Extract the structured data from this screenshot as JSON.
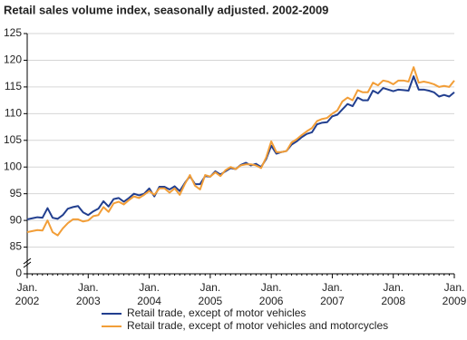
{
  "chart_data": {
    "type": "line",
    "title": "Retail sales volume index, seasonally adjusted. 2002-2009",
    "categories": [
      "Jan. 2002",
      null,
      null,
      null,
      null,
      null,
      null,
      null,
      null,
      null,
      null,
      null,
      "Jan. 2003",
      null,
      null,
      null,
      null,
      null,
      null,
      null,
      null,
      null,
      null,
      null,
      "Jan. 2004",
      null,
      null,
      null,
      null,
      null,
      null,
      null,
      null,
      null,
      null,
      null,
      "Jan. 2005",
      null,
      null,
      null,
      null,
      null,
      null,
      null,
      null,
      null,
      null,
      null,
      "Jan. 2006",
      null,
      null,
      null,
      null,
      null,
      null,
      null,
      null,
      null,
      null,
      null,
      "Jan. 2007",
      null,
      null,
      null,
      null,
      null,
      null,
      null,
      null,
      null,
      null,
      null,
      "Jan. 2008",
      null,
      null,
      null,
      null,
      null,
      null,
      null,
      null,
      null,
      null,
      null,
      "Jan. 2009"
    ],
    "series": [
      {
        "name": "Retail trade, except of motor vehicles",
        "color": "#223f8f",
        "values": [
          90.2,
          90.4,
          90.6,
          90.5,
          92.3,
          90.5,
          90.3,
          91,
          92.2,
          92.5,
          92.7,
          91.5,
          91,
          91.7,
          92.2,
          93.6,
          92.6,
          94,
          94.2,
          93.5,
          94.2,
          95,
          94.7,
          95,
          96,
          94.5,
          96.3,
          96.3,
          95.8,
          96.4,
          95.5,
          97,
          98.3,
          96.8,
          96.8,
          98.3,
          98.2,
          99.2,
          98.6,
          99.2,
          99.8,
          99.6,
          100.4,
          100.8,
          100.3,
          100.6,
          100,
          101.5,
          104,
          102.5,
          102.8,
          103,
          104.2,
          104.8,
          105.6,
          106.2,
          106.5,
          108,
          108.3,
          108.4,
          109.5,
          109.8,
          110.8,
          111.8,
          111.4,
          113,
          112.5,
          112.5,
          114.3,
          113.8,
          114.8,
          114.5,
          114.2,
          114.5,
          114.4,
          114.3,
          117,
          114.5,
          114.5,
          114.3,
          114,
          113.2,
          113.5,
          113.2,
          114
        ]
      },
      {
        "name": "Retail trade, except of motor vehicles and motorcycles",
        "color": "#f29e38",
        "values": [
          87.8,
          88,
          88.2,
          88.1,
          90,
          87.8,
          87.2,
          88.5,
          89.5,
          90.2,
          90.2,
          89.8,
          90,
          90.8,
          91,
          92.5,
          91.6,
          93.2,
          93.5,
          93,
          93.8,
          94.5,
          94.2,
          94.8,
          95.5,
          94.8,
          96,
          96,
          95.2,
          96,
          94.8,
          96.8,
          98.5,
          96.5,
          95.8,
          98.5,
          98.2,
          99,
          98.3,
          99.4,
          100,
          99.6,
          100.3,
          100.5,
          100.5,
          100.3,
          99.8,
          101.8,
          104.8,
          102.8,
          102.8,
          103,
          104.6,
          105.2,
          106,
          106.7,
          107.3,
          108.6,
          109,
          109.2,
          110,
          110.6,
          112.3,
          113,
          112.5,
          114.4,
          114,
          114,
          115.8,
          115.3,
          116.2,
          116,
          115.5,
          116.2,
          116.2,
          116,
          118.7,
          115.8,
          116,
          115.8,
          115.5,
          115,
          115.2,
          115,
          116.2
        ]
      }
    ],
    "ylim": [
      80,
      125
    ],
    "yticks": [
      {
        "value": 80,
        "label": "0"
      },
      85,
      90,
      95,
      100,
      105,
      110,
      115,
      120,
      125
    ],
    "grid": true
  }
}
